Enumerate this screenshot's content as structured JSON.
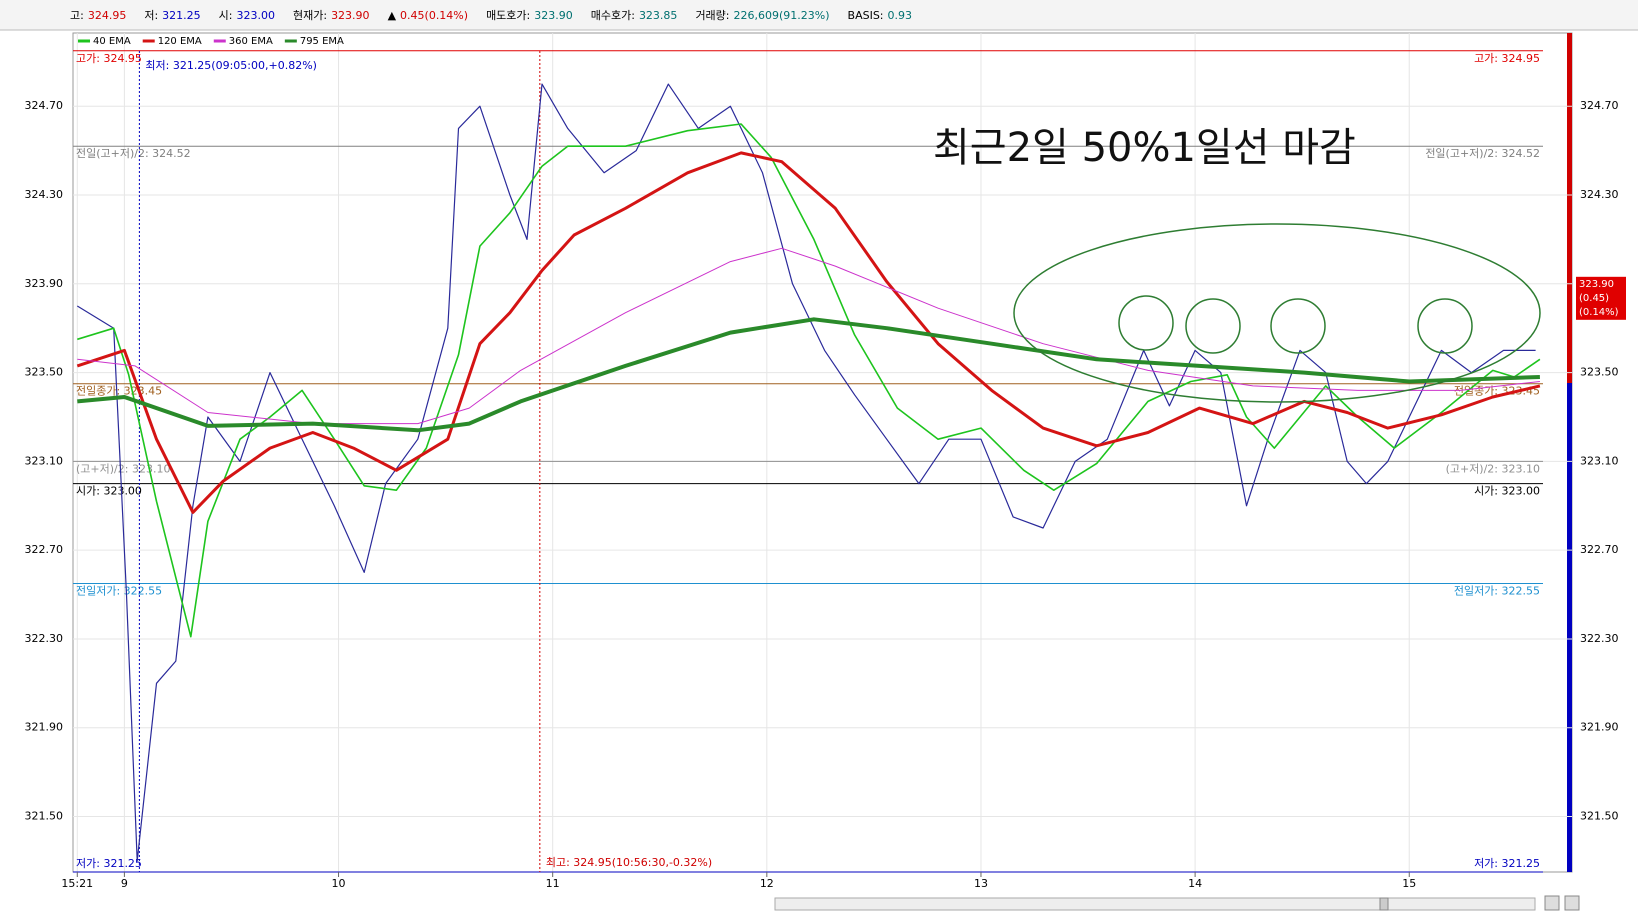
{
  "chart_data": {
    "type": "line",
    "header": [
      {
        "label": "고:",
        "value": "324.95",
        "color": "#d00000"
      },
      {
        "label": "저:",
        "value": "321.25",
        "color": "#0000c0"
      },
      {
        "label": "시:",
        "value": "323.00",
        "color": "#0000c0"
      },
      {
        "label": "현재가:",
        "value": "323.90",
        "color": "#d00000"
      },
      {
        "label": "▲",
        "value": "0.45(0.14%)",
        "color": "#d00000"
      },
      {
        "label": "매도호가:",
        "value": "323.90",
        "color": "#007070"
      },
      {
        "label": "매수호가:",
        "value": "323.85",
        "color": "#007070"
      },
      {
        "label": "거래량:",
        "value": "226,609(91.23%)",
        "color": "#007070"
      },
      {
        "label": "BASIS:",
        "value": "0.93",
        "color": "#007070"
      }
    ],
    "note": "최근2일 50%1일선 마감",
    "xlim": [
      8.76,
      15.76
    ],
    "xticks": [
      {
        "value": 8.78,
        "label": "15:21"
      },
      9,
      10,
      11,
      12,
      13,
      14,
      15
    ],
    "ylim": [
      321.25,
      325.03
    ],
    "yticks": [
      {
        "value": 321.5,
        "label": "321.50"
      },
      {
        "value": 321.9,
        "label": "321.90"
      },
      {
        "value": 322.3,
        "label": "322.30"
      },
      {
        "value": 322.7,
        "label": "322.70"
      },
      {
        "value": 323.1,
        "label": "323.10"
      },
      {
        "value": 323.5,
        "label": "323.50"
      },
      {
        "value": 323.9,
        "label": "323.90"
      },
      {
        "value": 324.3,
        "label": "324.30"
      },
      {
        "value": 324.7,
        "label": "324.70"
      }
    ],
    "grid": true,
    "price": {
      "color": "#2a2a9a",
      "x": [
        8.78,
        8.95,
        9.01,
        9.06,
        9.15,
        9.24,
        9.32,
        9.39,
        9.54,
        9.68,
        9.83,
        9.98,
        10.12,
        10.22,
        10.37,
        10.51,
        10.56,
        10.66,
        10.8,
        10.88,
        10.95,
        11.07,
        11.24,
        11.39,
        11.54,
        11.68,
        11.83,
        11.98,
        12.12,
        12.27,
        12.41,
        12.56,
        12.71,
        12.85,
        13.0,
        13.15,
        13.29,
        13.44,
        13.59,
        13.76,
        13.88,
        14.0,
        14.12,
        14.24,
        14.34,
        14.49,
        14.61,
        14.71,
        14.8,
        14.9,
        15.05,
        15.15,
        15.29,
        15.44,
        15.59
      ],
      "values": [
        323.8,
        323.7,
        322.5,
        321.3,
        322.1,
        322.2,
        322.9,
        323.3,
        323.1,
        323.5,
        323.2,
        322.9,
        322.6,
        323.0,
        323.2,
        323.7,
        324.6,
        324.7,
        324.3,
        324.1,
        324.8,
        324.6,
        324.4,
        324.5,
        324.8,
        324.6,
        324.7,
        324.4,
        323.9,
        323.6,
        323.4,
        323.2,
        323.0,
        323.2,
        323.2,
        322.85,
        322.8,
        323.1,
        323.2,
        323.6,
        323.35,
        323.6,
        323.5,
        322.9,
        323.2,
        323.6,
        323.5,
        323.1,
        323.0,
        323.1,
        323.4,
        323.6,
        323.5,
        323.6,
        323.6
      ]
    },
    "series": [
      {
        "name": "40 EMA",
        "color": "#1ec41e",
        "line_width": 1.6,
        "x": [
          8.78,
          8.95,
          9.02,
          9.15,
          9.31,
          9.39,
          9.54,
          9.68,
          9.83,
          9.98,
          10.12,
          10.27,
          10.41,
          10.56,
          10.66,
          10.8,
          10.95,
          11.07,
          11.34,
          11.63,
          11.88,
          12.02,
          12.22,
          12.41,
          12.61,
          12.8,
          13.0,
          13.2,
          13.34,
          13.54,
          13.78,
          13.98,
          14.15,
          14.24,
          14.37,
          14.61,
          14.76,
          14.93,
          15.15,
          15.39,
          15.49,
          15.61
        ],
        "values": [
          323.65,
          323.7,
          323.49,
          322.92,
          322.31,
          322.83,
          323.2,
          323.3,
          323.42,
          323.2,
          322.99,
          322.97,
          323.16,
          323.58,
          324.07,
          324.22,
          324.43,
          324.52,
          324.52,
          324.59,
          324.62,
          324.47,
          324.1,
          323.67,
          323.34,
          323.2,
          323.25,
          323.06,
          322.97,
          323.09,
          323.37,
          323.46,
          323.49,
          323.3,
          323.16,
          323.44,
          323.3,
          323.16,
          323.32,
          323.51,
          323.48,
          323.56
        ]
      },
      {
        "name": "120 EMA",
        "color": "#d41414",
        "line_width": 3,
        "x": [
          8.78,
          9.0,
          9.15,
          9.32,
          9.46,
          9.68,
          9.88,
          10.07,
          10.27,
          10.51,
          10.66,
          10.8,
          10.95,
          11.1,
          11.34,
          11.63,
          11.88,
          12.07,
          12.32,
          12.56,
          12.8,
          13.05,
          13.29,
          13.54,
          13.78,
          14.02,
          14.27,
          14.51,
          14.71,
          14.9,
          15.15,
          15.39,
          15.61
        ],
        "values": [
          323.53,
          323.6,
          323.2,
          322.87,
          323.01,
          323.16,
          323.23,
          323.16,
          323.06,
          323.2,
          323.63,
          323.77,
          323.96,
          324.12,
          324.24,
          324.4,
          324.49,
          324.45,
          324.24,
          323.91,
          323.63,
          323.42,
          323.25,
          323.17,
          323.23,
          323.34,
          323.27,
          323.37,
          323.32,
          323.25,
          323.31,
          323.39,
          323.44
        ]
      },
      {
        "name": "360 EMA",
        "color": "#cc33cc",
        "line_width": 1,
        "x": [
          8.78,
          9.05,
          9.39,
          9.88,
          10.37,
          10.61,
          10.85,
          11.34,
          11.83,
          12.07,
          12.32,
          12.8,
          13.29,
          13.78,
          14.27,
          14.76,
          15.24,
          15.61
        ],
        "values": [
          323.56,
          323.53,
          323.32,
          323.27,
          323.27,
          323.34,
          323.51,
          323.77,
          324.0,
          324.06,
          323.98,
          323.79,
          323.63,
          323.51,
          323.44,
          323.42,
          323.42,
          323.46
        ]
      },
      {
        "name": "795 EMA",
        "color": "#2a8a2a",
        "line_width": 4,
        "x": [
          8.78,
          9.0,
          9.39,
          9.88,
          10.37,
          10.61,
          10.85,
          11.34,
          11.83,
          12.22,
          12.56,
          13.05,
          13.54,
          14.02,
          14.51,
          15.0,
          15.61
        ],
        "values": [
          323.37,
          323.39,
          323.26,
          323.27,
          323.24,
          323.27,
          323.37,
          323.53,
          323.68,
          323.74,
          323.7,
          323.63,
          323.56,
          323.53,
          323.5,
          323.46,
          323.48
        ]
      }
    ],
    "reference_lines": [
      {
        "label": "고가: 324.95",
        "value": 324.95,
        "color": "#e00000"
      },
      {
        "label": "전일(고+저)/2: 324.52",
        "value": 324.52,
        "color": "#808080"
      },
      {
        "label": "전일종가: 323.45",
        "value": 323.45,
        "color": "#a06020"
      },
      {
        "label": "(고+저)/2: 323.10",
        "value": 323.1,
        "color": "#909090"
      },
      {
        "label": "시가: 323.00",
        "value": 323.0,
        "color": "#000000"
      },
      {
        "label": "전일저가: 322.55",
        "value": 322.55,
        "color": "#1e90d0"
      },
      {
        "label": "저가: 321.25",
        "value": 321.25,
        "color": "#0000c0"
      }
    ],
    "annotations": [
      {
        "text": "최저: 321.25(09:05:00,+0.82%)",
        "x": 9.07,
        "color": "#0000c0",
        "at": "top"
      },
      {
        "text": "최고: 324.95(10:56:30,-0.32%)",
        "x": 10.94,
        "color": "#d00000",
        "at": "bottom"
      }
    ],
    "last_price": {
      "value": 323.9,
      "labels": [
        "323.90",
        "(0.45)",
        "(0.14%)"
      ]
    }
  }
}
